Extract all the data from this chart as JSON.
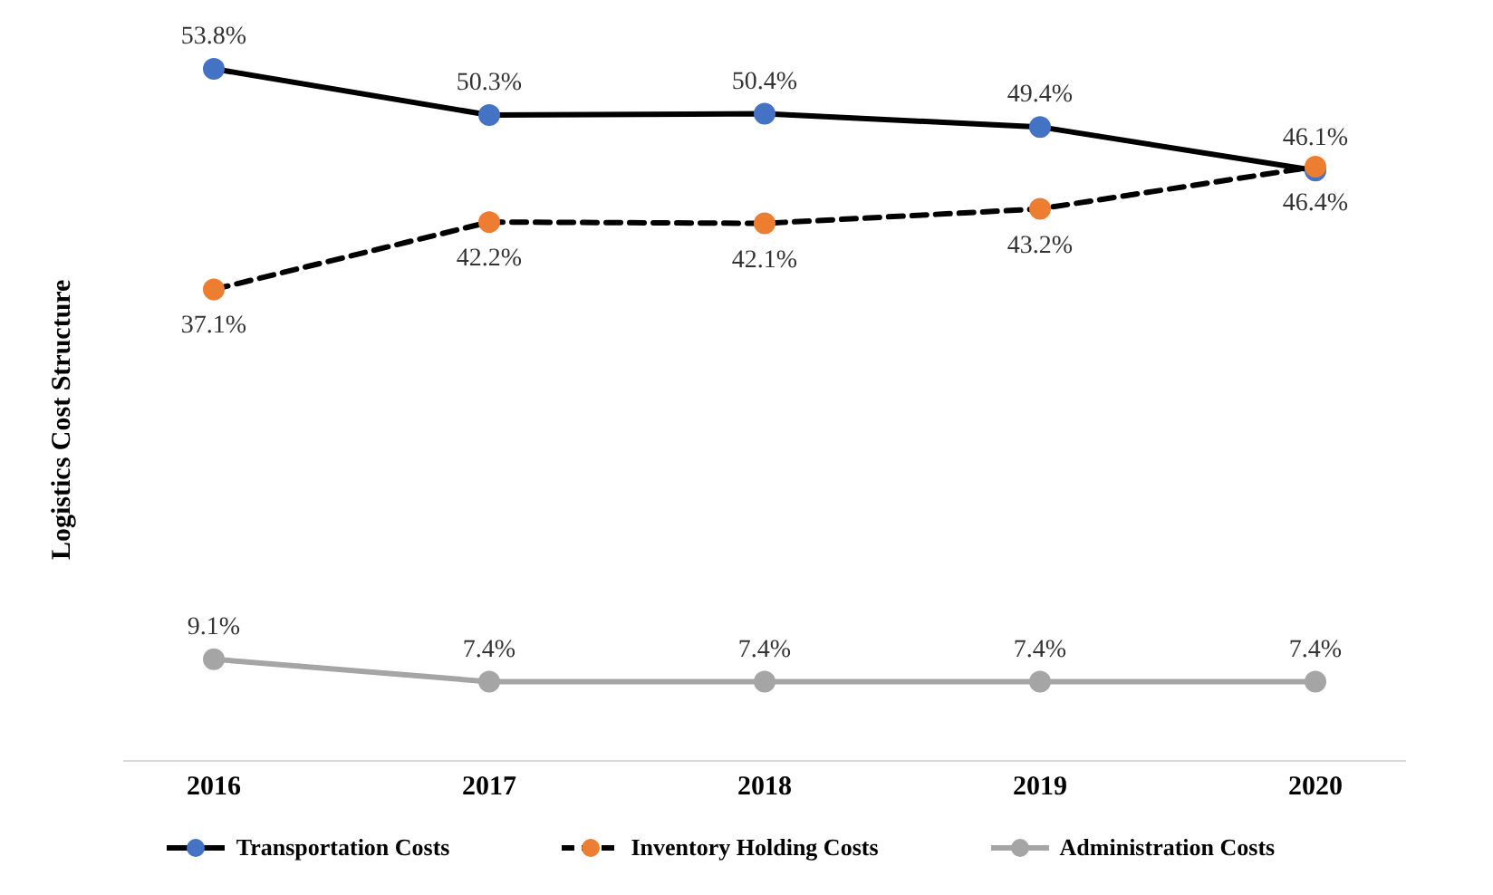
{
  "chart_data": {
    "type": "line",
    "ylabel": "Logistics Cost Structure",
    "categories": [
      "2016",
      "2017",
      "2018",
      "2019",
      "2020"
    ],
    "series": [
      {
        "name": "Transportation Costs",
        "color": "#000000",
        "colors": [
          "#4472c4",
          "#4472c4",
          "#4472c4",
          "#4472c4",
          "#4472c4"
        ],
        "line_style": "solid",
        "values": [
          53.8,
          50.3,
          50.4,
          49.4,
          46.1
        ],
        "value_labels": [
          "53.8%",
          "50.3%",
          "50.4%",
          "49.4%",
          "46.1%"
        ]
      },
      {
        "name": "Inventory Holding Costs",
        "color": "#000000",
        "colors": [
          "#ed7d31",
          "#ed7d31",
          "#ed7d31",
          "#ed7d31",
          "#ed7d31"
        ],
        "line_style": "dashed",
        "values": [
          37.1,
          42.2,
          42.1,
          43.2,
          46.4
        ],
        "value_labels": [
          "37.1%",
          "42.2%",
          "42.1%",
          "43.2%",
          "46.4%"
        ]
      },
      {
        "name": "Administration Costs",
        "color": "#a5a5a5",
        "colors": [
          "#a5a5a5",
          "#a5a5a5",
          "#a5a5a5",
          "#a5a5a5",
          "#a5a5a5"
        ],
        "line_style": "solid",
        "values": [
          9.1,
          7.4,
          7.4,
          7.4,
          7.4
        ],
        "value_labels": [
          "9.1%",
          "7.4%",
          "7.4%",
          "7.4%",
          "7.4%"
        ]
      }
    ],
    "grid": false,
    "legend": "bottom",
    "marker": "circle"
  }
}
